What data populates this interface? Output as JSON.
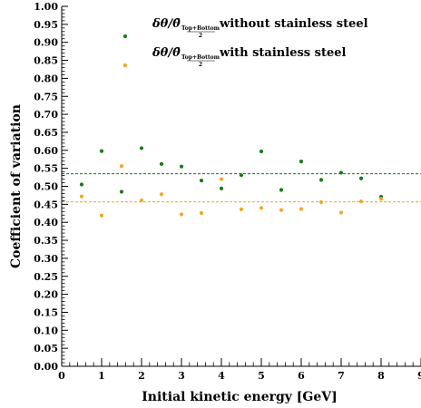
{
  "chart_data": {
    "type": "scatter",
    "xlabel": "Initial kinetic energy [GeV]",
    "ylabel": "Coefficient of variation",
    "xlim": [
      0,
      9
    ],
    "ylim": [
      0,
      1
    ],
    "x_ticks": [
      0,
      1,
      2,
      3,
      4,
      5,
      6,
      7,
      8,
      9
    ],
    "y_ticks": [
      0.0,
      0.05,
      0.1,
      0.15,
      0.2,
      0.25,
      0.3,
      0.35,
      0.4,
      0.45,
      0.5,
      0.55,
      0.6,
      0.65,
      0.7,
      0.75,
      0.8,
      0.85,
      0.9,
      0.95,
      1.0
    ],
    "legend_position": "top-right",
    "series": [
      {
        "name": "δθ/θ̄_{(Top+Bottom)/2} without stainless steel",
        "name_main": "δθ/θ̄",
        "name_sub": "Top+Bottom",
        "name_sub_den": "2",
        "name_rest": "without stainless steel",
        "color": "#1a7a1a",
        "mean_line": 0.535,
        "x": [
          0.5,
          1.0,
          1.5,
          2.0,
          2.5,
          3.0,
          3.5,
          4.0,
          4.5,
          5.0,
          5.5,
          6.0,
          6.5,
          7.0,
          7.5,
          8.0
        ],
        "y": [
          0.505,
          0.598,
          0.485,
          0.606,
          0.562,
          0.555,
          0.516,
          0.494,
          0.531,
          0.597,
          0.49,
          0.569,
          0.518,
          0.538,
          0.522,
          0.471
        ]
      },
      {
        "name": "δθ/θ̄_{(Top+Bottom)/2} with stainless steel",
        "name_main": "δθ/θ̄",
        "name_sub": "Top+Bottom",
        "name_sub_den": "2",
        "name_rest": "with stainless steel",
        "color": "#f5a623",
        "mean_line": 0.457,
        "x": [
          0.5,
          1.0,
          1.5,
          2.0,
          2.5,
          3.0,
          3.5,
          4.0,
          4.5,
          5.0,
          5.5,
          6.0,
          6.5,
          7.0,
          7.5,
          8.0
        ],
        "y": [
          0.472,
          0.419,
          0.556,
          0.461,
          0.478,
          0.422,
          0.426,
          0.52,
          0.436,
          0.44,
          0.434,
          0.437,
          0.456,
          0.427,
          0.458,
          0.465
        ]
      }
    ]
  }
}
